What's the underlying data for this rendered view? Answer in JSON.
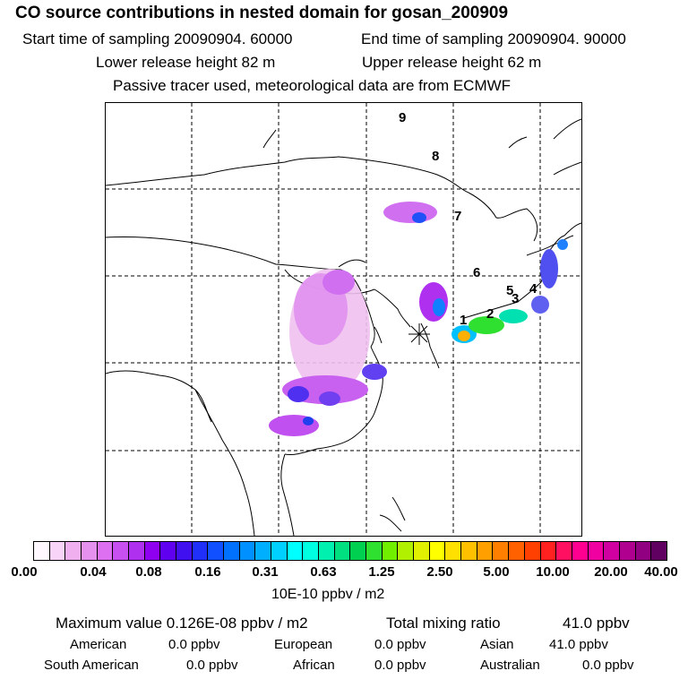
{
  "header": {
    "title": "CO  source contributions in nested domain for gosan_200909",
    "start": "Start time of sampling 20090904. 60000",
    "end": "End time of sampling 20090904. 90000",
    "lower": "Lower release height   82 m",
    "upper": "Upper release height   62 m",
    "note": "Passive tracer used, meteorological data are from ECMWF"
  },
  "map": {
    "trajectory_labels": [
      "1",
      "2",
      "3",
      "4",
      "5",
      "6",
      "7",
      "8",
      "9"
    ],
    "receptor_icon": "asterisk-marker-icon"
  },
  "colorbar": {
    "colors": [
      "#fff8ff",
      "#f8d4f8",
      "#f0b0f0",
      "#e690f0",
      "#dc70f0",
      "#c850f0",
      "#b030f0",
      "#9000f0",
      "#6000f0",
      "#4010f0",
      "#2030f8",
      "#1050ff",
      "#0070ff",
      "#0090ff",
      "#00b0ff",
      "#00d0ff",
      "#00ffff",
      "#00ffe0",
      "#00f0b0",
      "#00e080",
      "#00d050",
      "#30e030",
      "#70f000",
      "#b0f000",
      "#e0f000",
      "#ffff00",
      "#ffe000",
      "#ffc000",
      "#ffa000",
      "#ff8000",
      "#ff6000",
      "#ff4000",
      "#ff2020",
      "#ff1060",
      "#ff0090",
      "#f000a0",
      "#d000a0",
      "#b00090",
      "#900080",
      "#600060"
    ],
    "tick_labels": [
      "0.00",
      "0.04",
      "0.08",
      "0.16",
      "0.31",
      "0.63",
      "1.25",
      "2.50",
      "5.00",
      "10.00",
      "20.00",
      "40.00"
    ],
    "unit": "10E-10 ppbv / m2"
  },
  "stats": {
    "max": "Maximum value  0.126E-08 ppbv / m2",
    "total_label": "Total mixing ratio",
    "total_value": "41.0 ppbv",
    "american_label": "American",
    "american_value": "0.0 ppbv",
    "european_label": "European",
    "european_value": "0.0 ppbv",
    "asian_label": "Asian",
    "asian_value": "41.0 ppbv",
    "samerican_label": "South American",
    "samerican_value": "0.0 ppbv",
    "african_label": "African",
    "african_value": "0.0 ppbv",
    "australian_label": "Australian",
    "australian_value": "0.0 ppbv"
  }
}
